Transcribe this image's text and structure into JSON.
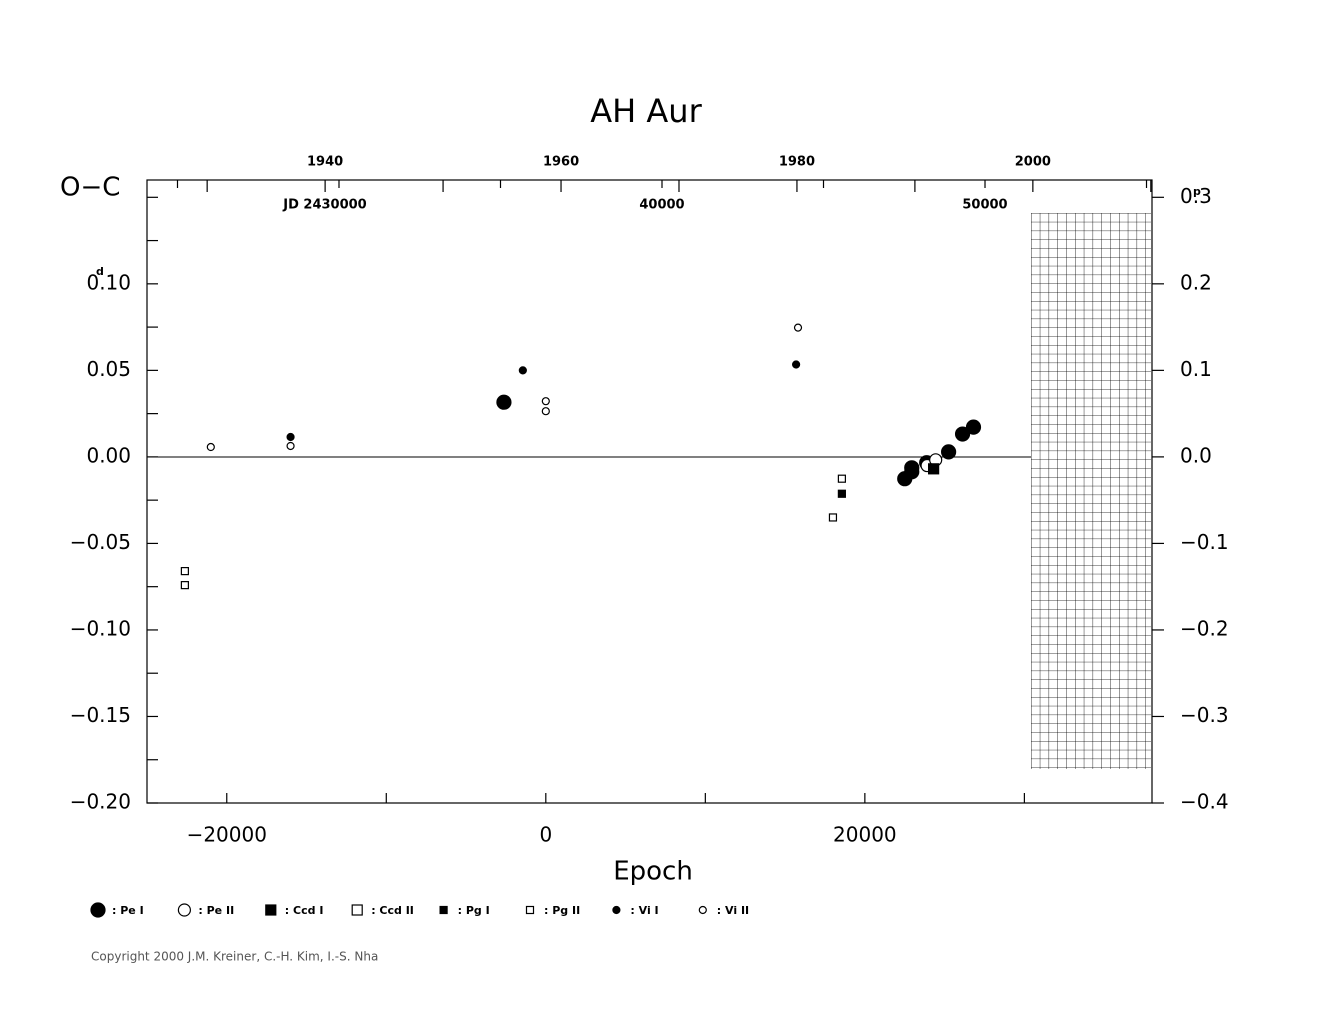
{
  "chart_data": {
    "type": "scatter",
    "title": "AH Aur",
    "y_label": "O−C",
    "x_label": "Epoch",
    "y_unit": "d",
    "y2_unit": "p",
    "xlim": [
      -25000,
      38000
    ],
    "xticks": [
      {
        "value": -20000,
        "label": "−20000"
      },
      0,
      20000
    ],
    "xminorticks": [
      -10000,
      10000,
      30000
    ],
    "ylim": [
      -0.2,
      0.16
    ],
    "yticks": [
      {
        "value": 0.1,
        "label": "0.10"
      },
      0.05,
      {
        "value": 0,
        "label": "0.00"
      },
      {
        "value": -0.05,
        "label": "−0.05"
      },
      {
        "value": -0.1,
        "label": "−0.10"
      },
      {
        "value": -0.15,
        "label": "−0.15"
      },
      {
        "value": -0.2,
        "label": "−0.20"
      }
    ],
    "yminorticks": [
      0.15,
      0.125,
      0.075,
      0.025,
      -0.025,
      -0.075,
      -0.125,
      -0.175
    ],
    "y2lim": [
      -0.4,
      0.32
    ],
    "y2ticks": [
      0.3,
      0.2,
      0.1,
      {
        "value": 0,
        "label": "0.0"
      },
      {
        "value": -0.1,
        "label": "−0.1"
      },
      {
        "value": -0.2,
        "label": "−0.2"
      },
      {
        "value": -0.3,
        "label": "−0.3"
      },
      {
        "value": -0.4,
        "label": "−0.4"
      }
    ],
    "x2lim": [
      1924.9,
      2010.1
    ],
    "x2ticks": [
      1940,
      1960,
      1980,
      2000
    ],
    "x2minorticks": [
      1930,
      1950,
      1970,
      1990,
      2010
    ],
    "x3lim": [
      2424056,
      2455170
    ],
    "x3ticks": [
      {
        "value": 2430000,
        "label": "JD  2430000"
      },
      {
        "value": 2440000,
        "label": "40000"
      },
      {
        "value": 2450000,
        "label": "50000"
      }
    ],
    "x3minorticks": [
      2425000,
      2435000,
      2445000,
      2455000
    ],
    "series": [
      {
        "name": ": Pe I",
        "marker": "circle",
        "filled": true,
        "size": 7,
        "color": "#000000",
        "x": [
          -2625,
          22500,
          22940,
          22940,
          23875,
          25250,
          26125,
          26810
        ],
        "values": [
          0.0316,
          -0.0126,
          -0.0063,
          -0.0086,
          -0.0034,
          0.0029,
          0.0132,
          0.0172
        ]
      },
      {
        "name": ": Pe II",
        "marker": "circle",
        "filled": false,
        "size": 6,
        "color": "#000000",
        "x": [
          23900,
          24440
        ],
        "values": [
          -0.005,
          -0.0017
        ]
      },
      {
        "name": ": Ccd I",
        "marker": "square",
        "filled": true,
        "size": 5,
        "color": "#000000",
        "x": [
          24310
        ],
        "values": [
          -0.0069
        ]
      },
      {
        "name": ": Ccd II",
        "marker": "square",
        "filled": false,
        "size": 5,
        "color": "#000000",
        "x": [],
        "values": []
      },
      {
        "name": ": Pg I",
        "marker": "square",
        "filled": true,
        "size": 3.5,
        "color": "#000000",
        "x": [
          18560
        ],
        "values": [
          -0.0213
        ]
      },
      {
        "name": ": Pg II",
        "marker": "square",
        "filled": false,
        "size": 3.5,
        "color": "#000000",
        "x": [
          -22625,
          -22625,
          18000,
          18560
        ],
        "values": [
          -0.066,
          -0.0741,
          -0.035,
          -0.0126
        ]
      },
      {
        "name": ": Vi I",
        "marker": "circle",
        "filled": true,
        "size": 3.5,
        "color": "#000000",
        "x": [
          -16000,
          -1440,
          15690
        ],
        "values": [
          0.0115,
          0.05,
          0.0534
        ]
      },
      {
        "name": ": Vi II",
        "marker": "circle",
        "filled": false,
        "size": 3.5,
        "color": "#000000",
        "x": [
          -21000,
          -16000,
          0,
          0,
          15810
        ],
        "values": [
          0.0057,
          0.0063,
          0.0322,
          0.0264,
          0.0747
        ]
      }
    ],
    "copyright": "Copyright 2000 J.M. Kreiner, C.-H. Kim, I.-S. Nha"
  }
}
